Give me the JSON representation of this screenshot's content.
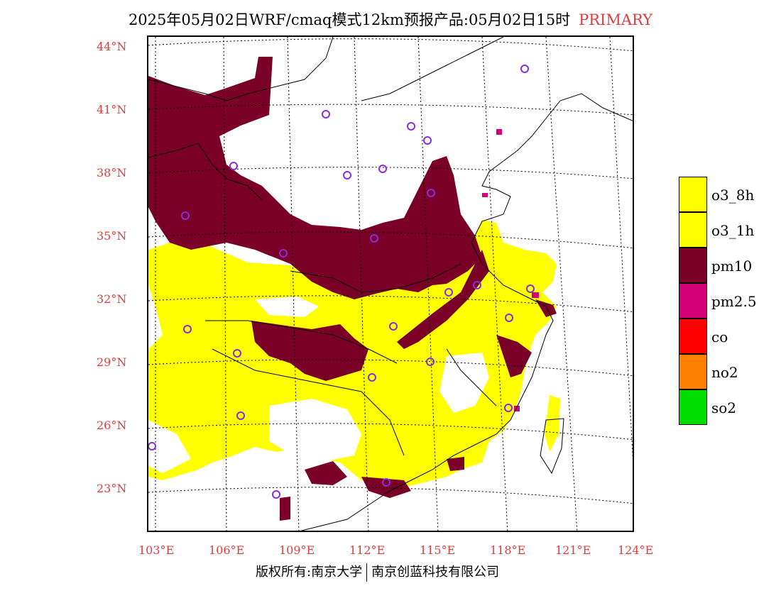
{
  "title": {
    "main": "2025年05月02日WRF/cmaq模式12km预报产品:05月02日15时",
    "tag": "PRIMARY"
  },
  "axes": {
    "lat_labels": [
      "44°N",
      "41°N",
      "38°N",
      "35°N",
      "32°N",
      "29°N",
      "26°N",
      "23°N"
    ],
    "lon_labels": [
      "103°E",
      "106°E",
      "109°E",
      "112°E",
      "115°E",
      "118°E",
      "121°E",
      "124°E"
    ]
  },
  "legend": [
    {
      "label": "o3_8h",
      "color": "#ffff00"
    },
    {
      "label": "o3_1h",
      "color": "#ffff00"
    },
    {
      "label": "pm10",
      "color": "#7a0028"
    },
    {
      "label": "pm2.5",
      "color": "#d4007a"
    },
    {
      "label": "co",
      "color": "#ff0000"
    },
    {
      "label": "no2",
      "color": "#ff8000"
    },
    {
      "label": "so2",
      "color": "#00dd00"
    }
  ],
  "copyright": {
    "left": "版权所有:南京大学",
    "right": "南京创蓝科技有限公司"
  }
}
